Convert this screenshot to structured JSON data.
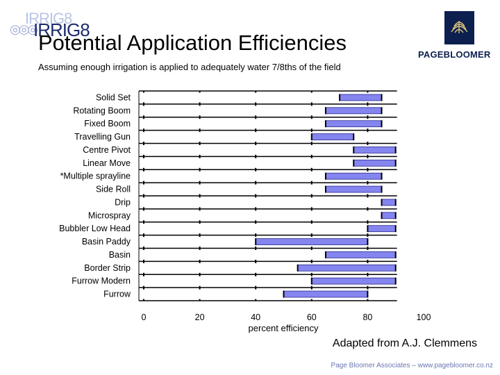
{
  "header": {
    "logo_text": "IRRIG8",
    "title": "Potential Application Efficiencies",
    "subtitle": "Assuming enough irrigation is applied to adequately water 7/8ths of the field",
    "brand": "PAGEBLOOMER"
  },
  "chart_data": {
    "type": "bar",
    "orientation": "horizontal-range",
    "title": "",
    "xlabel": "percent efficiency",
    "ylabel": "",
    "xlim": [
      0,
      100
    ],
    "xticks": [
      0,
      20,
      40,
      60,
      80,
      100
    ],
    "grid": true,
    "bar_color": "#8585f0",
    "categories": [
      "Solid Set",
      "Rotating Boom",
      "Fixed Boom",
      "Travelling Gun",
      "Centre Pivot",
      "Linear Move",
      "*Multiple sprayline",
      "Side Roll",
      "Drip",
      "Microspray",
      "Bubbler Low Head",
      "Basin Paddy",
      "Basin",
      "Border Strip",
      "Furrow Modern",
      "Furrow"
    ],
    "ranges": [
      [
        70,
        85
      ],
      [
        65,
        85
      ],
      [
        65,
        85
      ],
      [
        60,
        75
      ],
      [
        75,
        90
      ],
      [
        75,
        90
      ],
      [
        65,
        85
      ],
      [
        65,
        85
      ],
      [
        85,
        90
      ],
      [
        85,
        90
      ],
      [
        80,
        90
      ],
      [
        40,
        80
      ],
      [
        65,
        90
      ],
      [
        55,
        90
      ],
      [
        60,
        90
      ],
      [
        50,
        80
      ]
    ]
  },
  "footer": {
    "credit": "Adapted from A.J. Clemmens",
    "site": "Page Bloomer Associates – www.pagebloomer.co.nz"
  }
}
